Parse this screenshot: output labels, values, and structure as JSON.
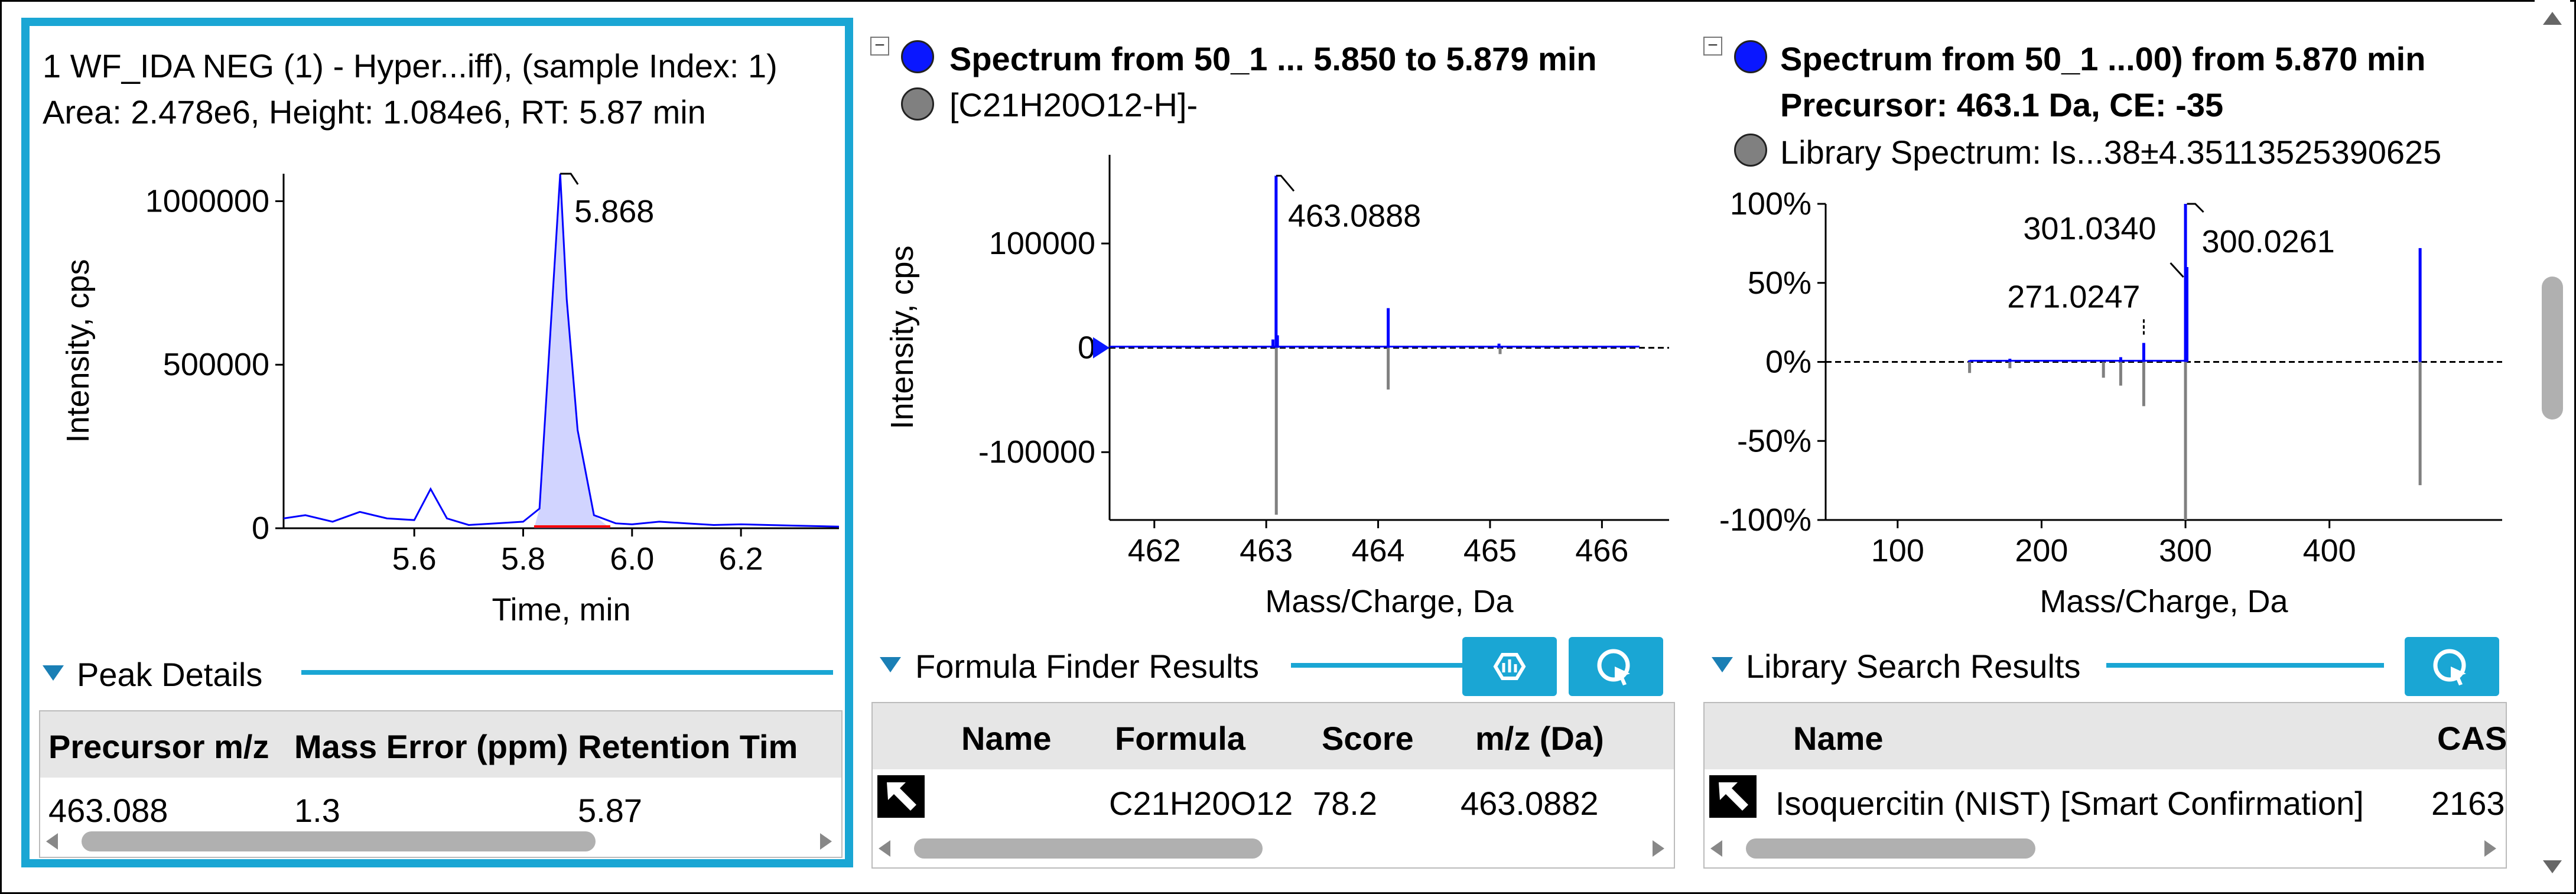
{
  "panel1": {
    "title": "1 WF_IDA NEG (1) - Hyper...iff), (sample Index: 1)",
    "subtitle": "Area: 2.478e6, Height: 1.084e6, RT: 5.87 min",
    "chart_data": {
      "type": "line",
      "xlabel": "Time, min",
      "ylabel": "Intensity, cps",
      "xticks": [
        "5.6",
        "5.8",
        "6.0",
        "6.2"
      ],
      "yticks": [
        "0",
        "500000",
        "1000000"
      ],
      "xlim": [
        5.36,
        6.38
      ],
      "ylim": [
        0,
        1084000
      ],
      "series": [
        {
          "x": [
            5.36,
            5.4,
            5.45,
            5.5,
            5.55,
            5.6,
            5.63,
            5.66,
            5.7,
            5.75,
            5.8,
            5.83,
            5.85,
            5.868,
            5.88,
            5.9,
            5.93,
            5.97,
            6.0,
            6.05,
            6.1,
            6.15,
            6.2,
            6.25,
            6.3,
            6.38
          ],
          "y": [
            30000,
            40000,
            20000,
            50000,
            30000,
            25000,
            120000,
            30000,
            10000,
            15000,
            20000,
            60000,
            600000,
            1084000,
            700000,
            300000,
            40000,
            15000,
            12000,
            20000,
            15000,
            10000,
            12000,
            10000,
            8000,
            5000
          ]
        }
      ],
      "annotations": [
        {
          "x": 5.868,
          "label": "5.868"
        }
      ],
      "shaded_region": [
        5.82,
        5.96
      ]
    },
    "section_title": "Peak Details",
    "table": {
      "columns": [
        "Precursor m/z",
        "Mass Error (ppm)",
        "Retention Tim"
      ],
      "rows": [
        [
          "463.088",
          "1.3",
          "5.87"
        ]
      ]
    }
  },
  "panel2": {
    "title": "Spectrum from 50_1 ... 5.850 to 5.879 min",
    "legend2": "[C21H20O12-H]-",
    "chart_data": {
      "type": "bar",
      "xlabel": "Mass/Charge, Da",
      "ylabel": "Intensity, cps",
      "xticks": [
        "462",
        "463",
        "464",
        "465",
        "466"
      ],
      "yticks": [
        "100000",
        "0",
        "-100000"
      ],
      "xlim": [
        461.6,
        466.6
      ],
      "ylim": [
        -165000,
        185000
      ],
      "series": [
        {
          "name": "Spectrum from 50_1 ... 5.850 to 5.879 min",
          "x": [
            463.06,
            463.088,
            463.1,
            464.09,
            465.08
          ],
          "y": [
            8000,
            165000,
            12000,
            38000,
            4000
          ]
        },
        {
          "name": "[C21H20O12-H]-",
          "x": [
            463.09,
            464.09,
            465.09
          ],
          "y": [
            -160000,
            -40000,
            -6000
          ]
        }
      ],
      "annotations": [
        {
          "x": 463.0888,
          "label": "463.0888"
        }
      ]
    },
    "section_title": "Formula Finder Results",
    "table": {
      "columns": [
        "Name",
        "Formula",
        "Score",
        "m/z (Da)"
      ],
      "rows": [
        [
          "",
          "C21H20O12",
          "78.2",
          "463.0882"
        ]
      ]
    }
  },
  "panel3": {
    "title": "Spectrum from 50_1 ...00) from 5.870 min",
    "title_line2": "Precursor: 463.1 Da, CE: -35",
    "legend2": "Library Spectrum: Is...38±4.35113525390625",
    "chart_data": {
      "type": "bar",
      "xlabel": "Mass/Charge, Da",
      "xticks": [
        "100",
        "200",
        "300",
        "400"
      ],
      "yticks": [
        "100%",
        "50%",
        "0%",
        "-50%",
        "-100%"
      ],
      "xlim": [
        50,
        520
      ],
      "ylim": [
        -100,
        100
      ],
      "series": [
        {
          "name": "Spectrum from 50_1 ...00) from 5.870 min",
          "x": [
            150,
            178,
            255,
            271,
            300,
            301,
            463
          ],
          "y": [
            1,
            2,
            3,
            12,
            100,
            60,
            72
          ]
        },
        {
          "name": "Library Spectrum: Is...38±4.35113525390625",
          "x": [
            150,
            178,
            243,
            255,
            271,
            300,
            463
          ],
          "y": [
            -7,
            -4,
            -10,
            -15,
            -28,
            -100,
            -78
          ]
        }
      ],
      "annotations": [
        {
          "x": 301.034,
          "label": "301.0340"
        },
        {
          "x": 300.0261,
          "label": "300.0261"
        },
        {
          "x": 271.0247,
          "label": "271.0247"
        }
      ]
    },
    "section_title": "Library Search Results",
    "table": {
      "columns": [
        "Name",
        "CAS"
      ],
      "rows": [
        [
          "Isoquercitin (NIST) [Smart Confirmation]",
          "2163"
        ]
      ]
    }
  },
  "colors": {
    "accent": "#1aa6d4",
    "series_blue": "#0000ff",
    "series_gray": "#808080",
    "baseline_red": "#ff0000"
  }
}
